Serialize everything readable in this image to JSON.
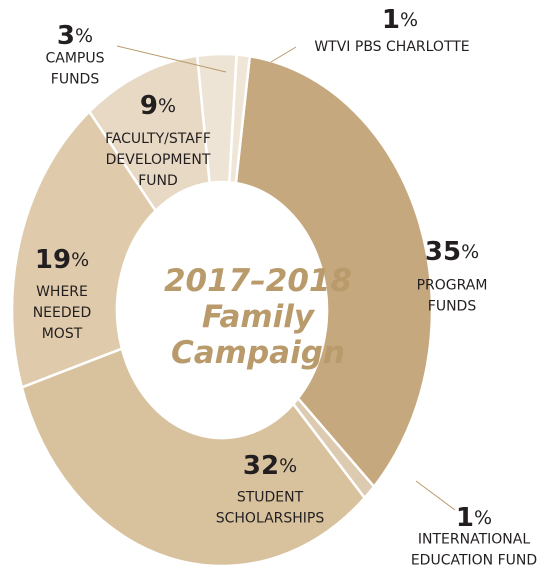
{
  "chart_data": {
    "type": "donut",
    "title": "2017–2018\nFamily\nCampaign",
    "categories": [
      "WTVI PBS CHARLOTTE",
      "PROGRAM\nFUNDS",
      "INTERNATIONAL\nEDUCATION FUND",
      "STUDENT\nSCHOLARSHIPS",
      "WHERE\nNEEDED\nMOST",
      "FACULTY/STAFF\nDEVELOPMENT\nFUND",
      "CAMPUS\nFUNDS"
    ],
    "values": [
      1,
      35,
      1,
      32,
      19,
      9,
      3
    ],
    "value_labels": [
      "1%",
      "35%",
      "1%",
      "32%",
      "19%",
      "9%",
      "3%"
    ],
    "colors": [
      "#efe6d8",
      "#c6a87e",
      "#dccbb0",
      "#d8c29e",
      "#dfcbab",
      "#e7d9c3",
      "#eee4d5"
    ]
  }
}
